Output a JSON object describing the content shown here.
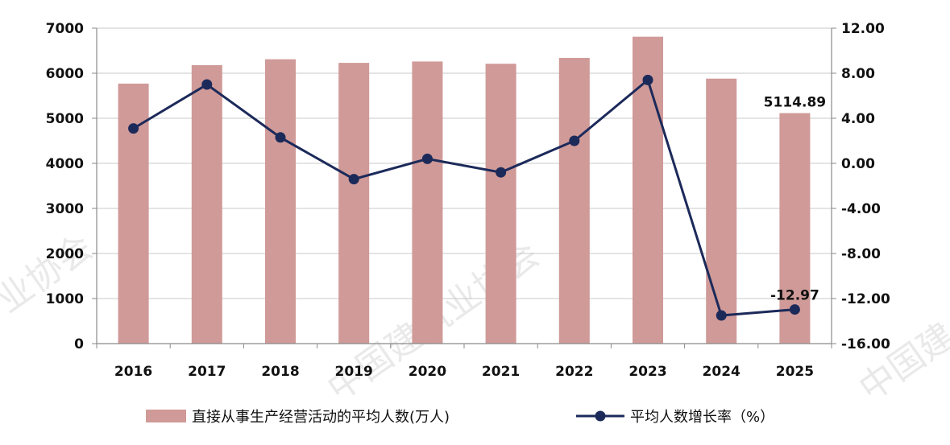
{
  "chart_data": {
    "type": "bar+line",
    "categories": [
      "2016",
      "2017",
      "2018",
      "2019",
      "2020",
      "2021",
      "2022",
      "2023",
      "2024",
      "2025"
    ],
    "series": [
      {
        "name": "直接从事生产经营活动的平均人数(万人)",
        "type": "bar",
        "axis": "left",
        "color": "#cf9a98",
        "values": [
          5770,
          6180,
          6310,
          6230,
          6260,
          6210,
          6340,
          6810,
          5880,
          5114.89
        ]
      },
      {
        "name": "平均人数增长率（%）",
        "type": "line",
        "axis": "right",
        "color": "#1c2a5a",
        "values": [
          3.1,
          7.0,
          2.3,
          -1.4,
          0.4,
          -0.8,
          2.0,
          7.4,
          -13.5,
          -12.97
        ]
      }
    ],
    "left_axis": {
      "min": 0,
      "max": 7000,
      "step": 1000,
      "ticks": [
        "0",
        "1000",
        "2000",
        "3000",
        "4000",
        "5000",
        "6000",
        "7000"
      ]
    },
    "right_axis": {
      "min": -16,
      "max": 12,
      "step": 4,
      "ticks": [
        "-16.00",
        "-12.00",
        "-8.00",
        "-4.00",
        "0.00",
        "4.00",
        "8.00",
        "12.00"
      ]
    },
    "data_labels": [
      {
        "series": 0,
        "index": 9,
        "text": "5114.89"
      },
      {
        "series": 1,
        "index": 9,
        "text": "-12.97"
      }
    ],
    "grid": "horizontal",
    "legend_position": "bottom"
  },
  "watermark": [
    "中国建筑业协会",
    "业协会",
    "中国建"
  ]
}
